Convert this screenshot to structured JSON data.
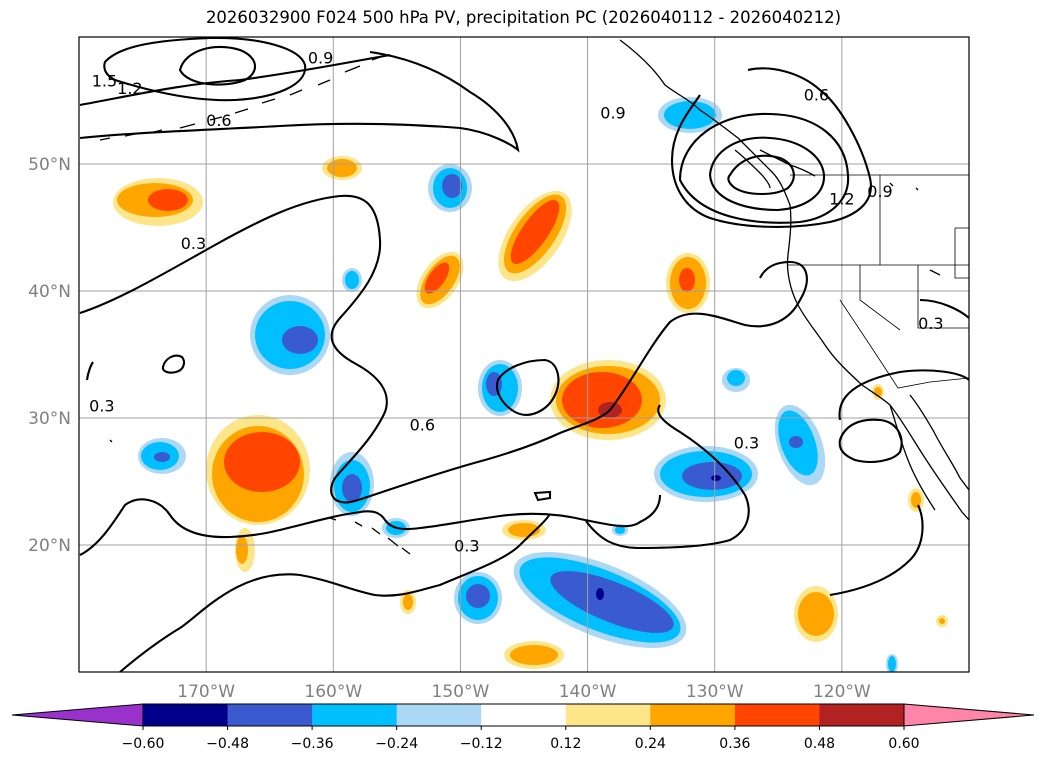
{
  "title": "2026032900 F024 500 hPa PV, precipitation PC (2026040112 - 2026040212)",
  "map": {
    "lat_labels": [
      {
        "text": "50°N",
        "lat": 50
      },
      {
        "text": "40°N",
        "lat": 40
      },
      {
        "text": "30°N",
        "lat": 30
      },
      {
        "text": "20°N",
        "lat": 20
      }
    ],
    "lon_labels": [
      {
        "text": "170°W",
        "lon": -170
      },
      {
        "text": "160°W",
        "lon": -160
      },
      {
        "text": "150°W",
        "lon": -150
      },
      {
        "text": "140°W",
        "lon": -140
      },
      {
        "text": "130°W",
        "lon": -130
      },
      {
        "text": "120°W",
        "lon": -120
      }
    ],
    "extent": {
      "lon_min": -180,
      "lon_max": -110,
      "lat_min": 10,
      "lat_max": 60
    },
    "gridlines": true,
    "contour_labels": [
      {
        "text": "1.5",
        "lon": -179,
        "lat": 56.1
      },
      {
        "text": "1.2",
        "lon": -177,
        "lat": 55.5
      },
      {
        "text": "0.9",
        "lon": -162,
        "lat": 57.9
      },
      {
        "text": "0.6",
        "lon": -170,
        "lat": 53.0
      },
      {
        "text": "0.3",
        "lon": -172,
        "lat": 43.3
      },
      {
        "text": "0.3",
        "lon": -179.2,
        "lat": 30.5
      },
      {
        "text": "0.6",
        "lon": -154,
        "lat": 29.0
      },
      {
        "text": "0.3",
        "lon": -150.5,
        "lat": 19.5
      },
      {
        "text": "0.6",
        "lon": -123,
        "lat": 55.0
      },
      {
        "text": "0.9",
        "lon": -118,
        "lat": 47.4
      },
      {
        "text": "1.2",
        "lon": -121,
        "lat": 46.8
      },
      {
        "text": "0.9",
        "lon": -139,
        "lat": 53.6
      },
      {
        "text": "0.3",
        "lon": -114,
        "lat": 37.0
      },
      {
        "text": "0.3",
        "lon": -128.5,
        "lat": 27.6
      }
    ]
  },
  "colorbar": {
    "levels": [
      "−0.60",
      "−0.48",
      "−0.36",
      "−0.24",
      "−0.12",
      "0.12",
      "0.24",
      "0.36",
      "0.48",
      "0.60"
    ],
    "colors": [
      "#9932cc",
      "#00008b",
      "#3a5bd0",
      "#00bfff",
      "#add8f5",
      "#ffffff",
      "#fde68a",
      "#ffa500",
      "#ff4500",
      "#b22222",
      "#ff85a8"
    ]
  },
  "colors": {
    "blue_light": "#add8f5",
    "blue_mid": "#00bfff",
    "blue_dark": "#3a5bd0",
    "blue_darkest": "#00008b",
    "orange_light": "#fde68a",
    "orange_mid": "#ffa500",
    "orange_dark": "#ff4500",
    "red_dark": "#b22222"
  }
}
